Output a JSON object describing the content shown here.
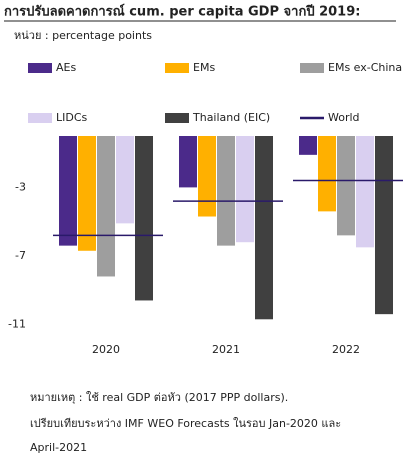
{
  "chart_data": {
    "type": "bar",
    "title": "การปรับลดคาดการณ์ cum. per capita GDP จากปี 2019:",
    "subtitle": "หน่วย : percentage points",
    "categories": [
      "2020",
      "2021",
      "2022"
    ],
    "series": [
      {
        "name": "AEs",
        "color": "#4b2a8a",
        "values": [
          -6.4,
          -3.0,
          -1.1
        ]
      },
      {
        "name": "EMs",
        "color": "#ffb000",
        "values": [
          -6.7,
          -4.7,
          -4.4
        ]
      },
      {
        "name": "EMs ex-China",
        "color": "#9e9e9e",
        "values": [
          -8.2,
          -6.4,
          -5.8
        ]
      },
      {
        "name": "LIDCs",
        "color": "#d9cff0",
        "values": [
          -5.1,
          -6.2,
          -6.5
        ]
      },
      {
        "name": "Thailand (EIC)",
        "color": "#404040",
        "values": [
          -9.6,
          -10.7,
          -10.4
        ]
      },
      {
        "name": "World",
        "color": "#2a1a6a",
        "values": [
          -5.8,
          -3.8,
          -2.6
        ],
        "style": "line"
      }
    ],
    "ylim": [
      -11.5,
      0
    ],
    "yticks": [
      -3,
      -7,
      -11
    ],
    "notes": [
      "หมายเหตุ : ใช้ real GDP ต่อหัว (2017 PPP dollars).",
      "เปรียบเทียบระหว่าง IMF WEO Forecasts ในรอบ Jan-2020 และ",
      "April-2021"
    ]
  }
}
